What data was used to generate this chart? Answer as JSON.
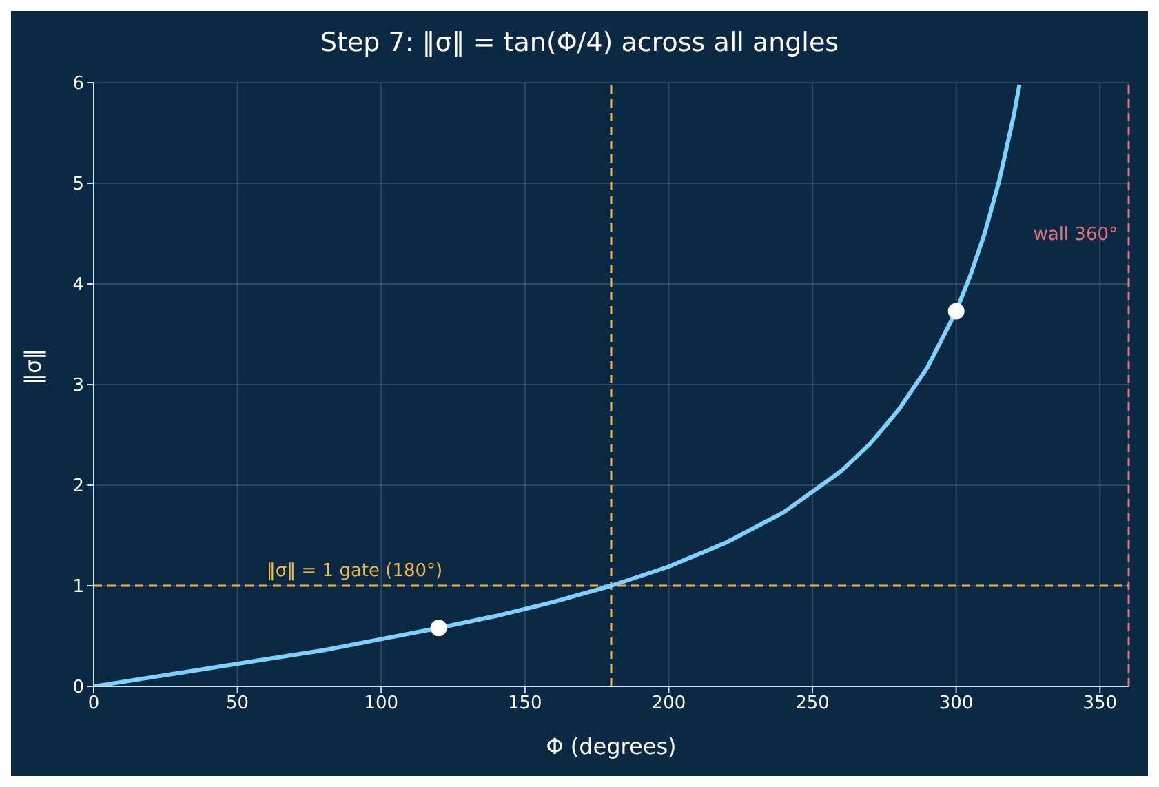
{
  "chart_data": {
    "type": "line",
    "title": "Step 7: ‖σ‖ = tan(Φ/4) across all angles",
    "xlabel": "Φ (degrees)",
    "ylabel": "‖σ‖",
    "xlim": [
      0,
      360
    ],
    "xticks": [
      0,
      50,
      100,
      150,
      200,
      250,
      300,
      350
    ],
    "ylim": [
      0,
      6
    ],
    "yticks": [
      0,
      1,
      2,
      3,
      4,
      5,
      6
    ],
    "grid": true,
    "series": [
      {
        "color": "#7fd0ff",
        "x": [
          0,
          20,
          40,
          60,
          80,
          100,
          120,
          140,
          160,
          180,
          200,
          220,
          240,
          260,
          270,
          280,
          290,
          300,
          305,
          310,
          315,
          320,
          322
        ],
        "values": [
          0,
          0.09,
          0.18,
          0.27,
          0.36,
          0.47,
          0.58,
          0.7,
          0.84,
          1.0,
          1.19,
          1.43,
          1.73,
          2.14,
          2.41,
          2.75,
          3.17,
          3.73,
          4.09,
          4.51,
          5.03,
          5.67,
          5.98
        ]
      },
      {
        "type": "scatter",
        "color": "#ffffff",
        "x": [
          120,
          300
        ],
        "values": [
          0.58,
          3.73
        ]
      }
    ],
    "ref_lines": [
      {
        "axis": "y",
        "value": 1,
        "color": "#f0b94a",
        "line_style": "dashed",
        "label": "‖σ‖ = 1 gate (180°)"
      },
      {
        "axis": "x",
        "value": 180,
        "color": "#f0b94a",
        "line_style": "dashed"
      },
      {
        "axis": "x",
        "value": 360,
        "color": "#e8707a",
        "line_style": "dashed",
        "label": "wall 360°"
      }
    ]
  }
}
